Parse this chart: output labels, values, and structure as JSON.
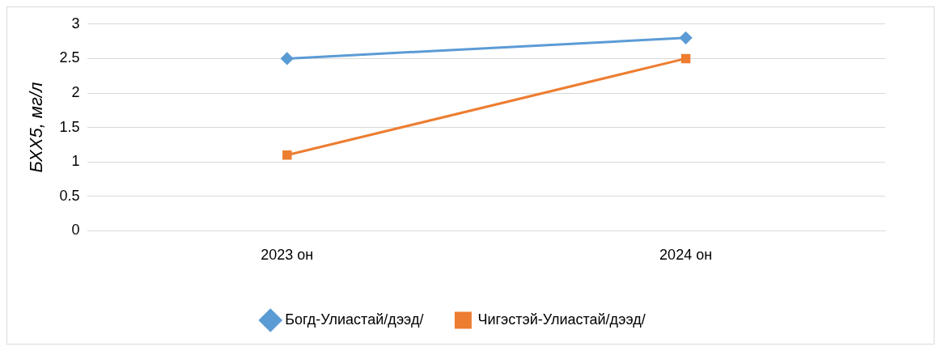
{
  "chart_data": {
    "type": "line",
    "ylabel": "БХХ5, мг/л",
    "categories": [
      "2023 он",
      "2024 он"
    ],
    "series": [
      {
        "name": "Богд-Улиастай/дээд/",
        "color": "#5b9bd5",
        "marker": "diamond",
        "values": [
          2.5,
          2.8
        ]
      },
      {
        "name": "Чигэстэй-Улиастай/дээд/",
        "color": "#ed7d31",
        "marker": "square",
        "values": [
          1.1,
          2.5
        ]
      }
    ],
    "ylim": [
      0,
      3
    ],
    "yticks": [
      0,
      0.5,
      1,
      1.5,
      2,
      2.5,
      3
    ],
    "grid": "y",
    "legend": "bottom"
  }
}
